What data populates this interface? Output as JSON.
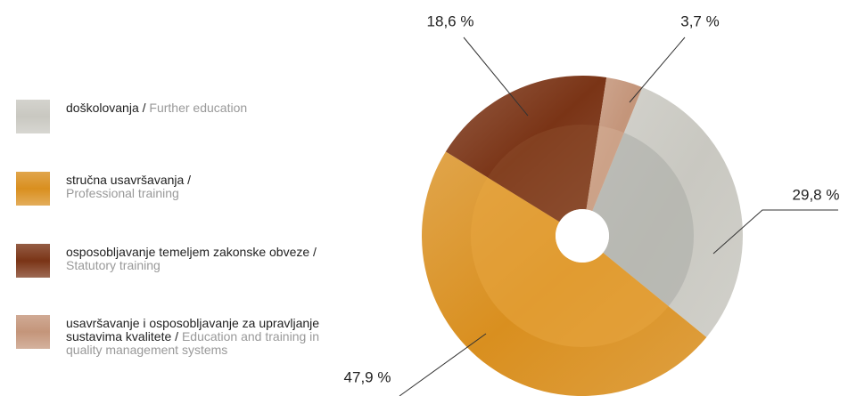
{
  "chart_data": {
    "type": "pie",
    "categories": [
      "doškolovanja /",
      "stručna usavršavanja /",
      "osposobljavanje temeljem zakonske obveze /",
      "usavršavanje i osposobljavanje za upravljanje sustavima kvalitete /"
    ],
    "categories_en": [
      "Further education",
      "Professional training",
      "Statutory training",
      "Education and training in quality management systems"
    ],
    "values": [
      29.8,
      47.9,
      18.6,
      3.7
    ],
    "value_labels": [
      "29,8 %",
      "47,9 %",
      "18,6 %",
      "3,7 %"
    ],
    "colors": [
      "#c9c8c1",
      "#d98f1f",
      "#7a3416",
      "#c4957a"
    ],
    "donut": true
  }
}
